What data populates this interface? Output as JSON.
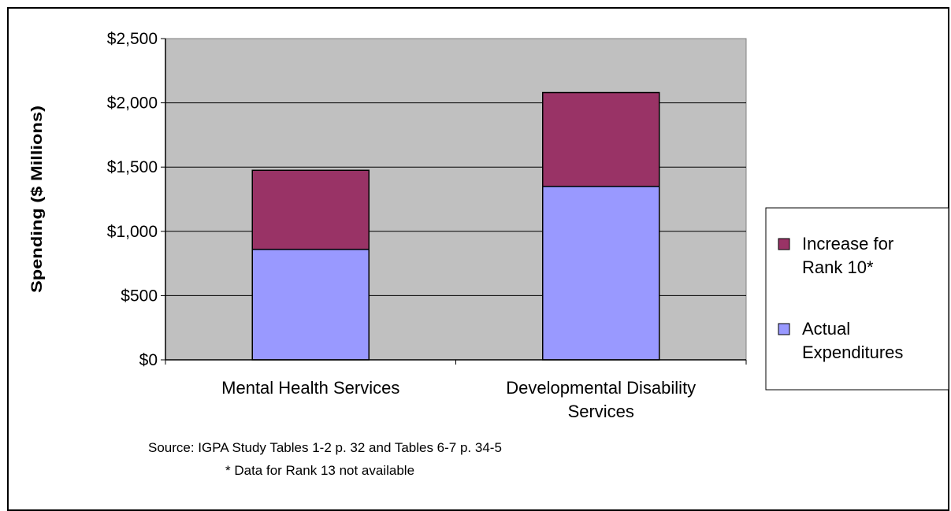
{
  "chart_data": {
    "type": "bar",
    "stacked": true,
    "categories": [
      [
        "Mental Health Services"
      ],
      [
        "Developmental Disability",
        "Services"
      ]
    ],
    "series": [
      {
        "name": "Actual Expenditures",
        "legend_lines": [
          "Actual",
          "Expenditures"
        ],
        "color": "#9999ff",
        "values": [
          860,
          1350
        ]
      },
      {
        "name": "Increase for Rank 10*",
        "legend_lines": [
          "Increase for",
          "Rank 10*"
        ],
        "color": "#993366",
        "values": [
          615,
          730
        ]
      }
    ],
    "ylabel": "Spending ($ Millions)",
    "ylim": [
      0,
      2500
    ],
    "yticks": [
      0,
      500,
      1000,
      1500,
      2000,
      2500
    ],
    "ytick_labels": [
      "$0",
      "$500",
      "$1,000",
      "$1,500",
      "$2,000",
      "$2,500"
    ],
    "grid": true,
    "plot_background": "#c0c0c0",
    "legend_position": "right",
    "notes": [
      "Source: IGPA Study Tables 1-2 p. 32 and Tables 6-7 p. 34-5",
      "* Data for Rank 13 not available"
    ]
  }
}
